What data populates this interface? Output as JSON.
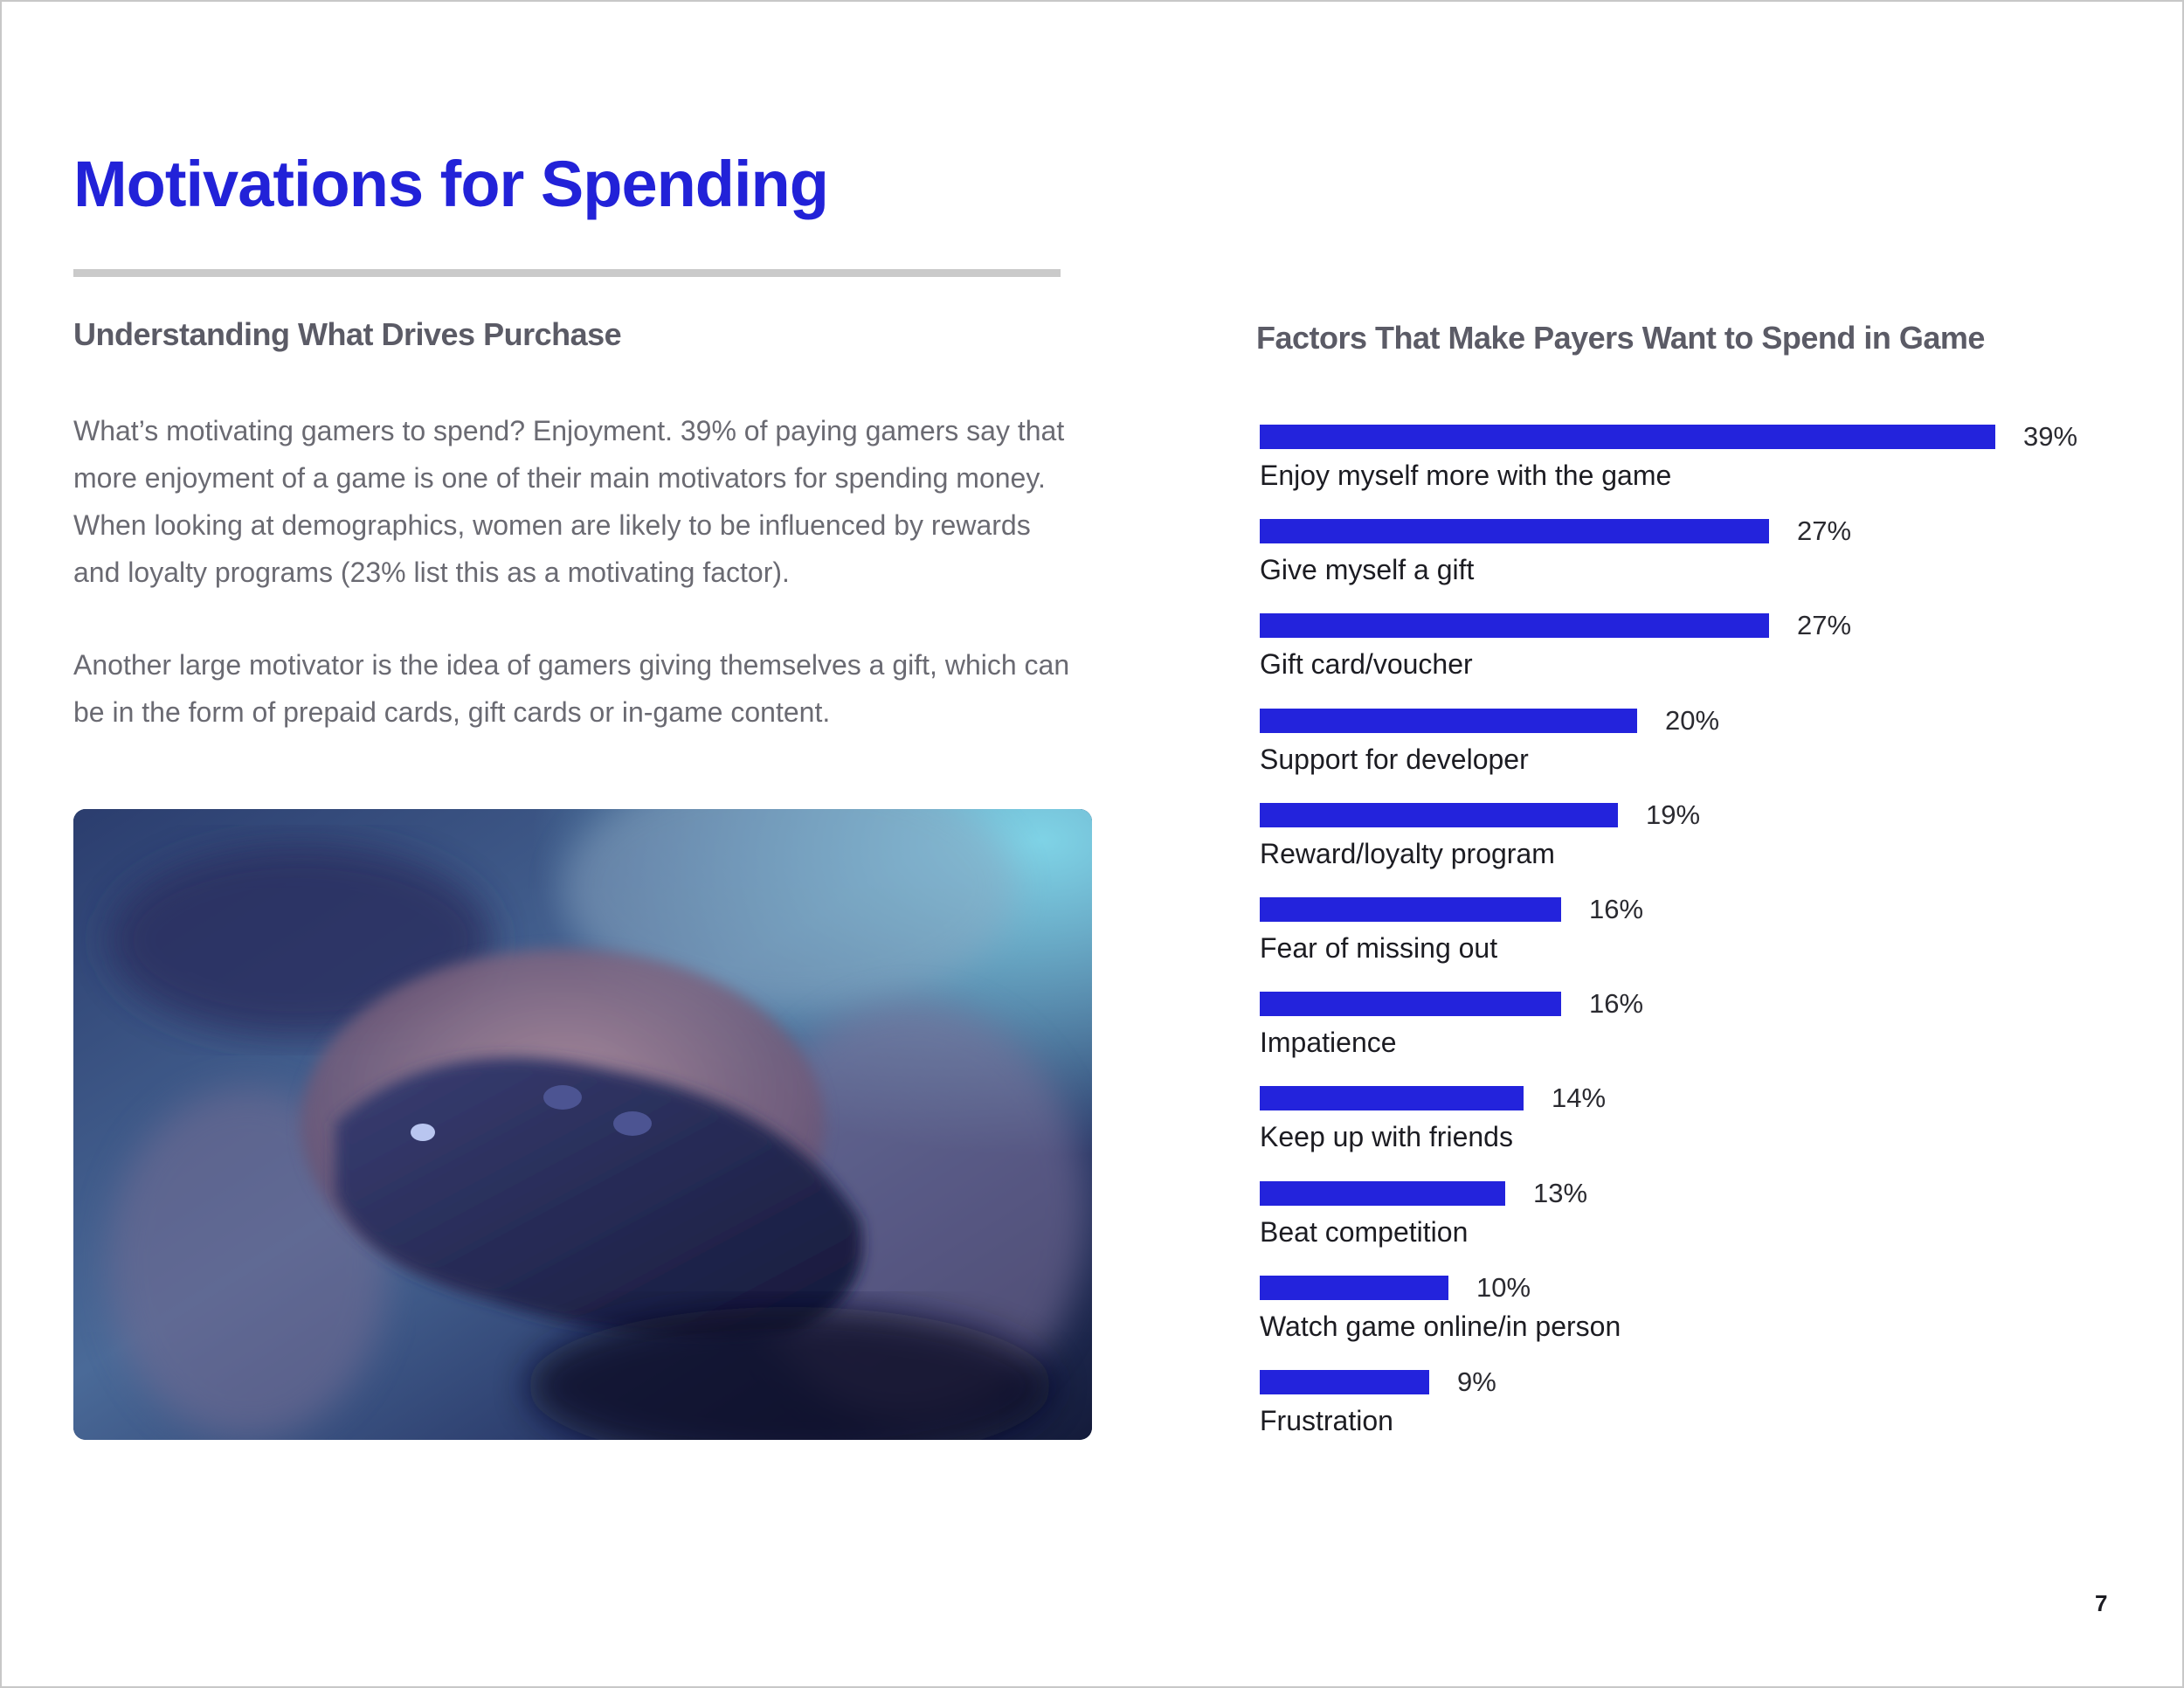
{
  "page": {
    "title": "Motivations for Spending",
    "page_number": "7"
  },
  "left": {
    "heading": "Understanding What Drives Purchase",
    "paragraph_1": "What’s motivating gamers to spend? Enjoyment. 39% of paying gamers say that more enjoyment of a game is one of their main motivators for spending money. When looking at demographics, women are likely to be influenced by rewards and loyalty programs (23% list this as a motivating factor).",
    "paragraph_2": "Another large motivator is the idea of gamers giving themselves a gift, which can be in the form of prepaid cards, gift cards or in-game content."
  },
  "colors": {
    "accent": "#2323dc",
    "title": "#2222d8",
    "heading": "#5b5b66",
    "body_text": "#6a6a72"
  },
  "chart_data": {
    "type": "bar",
    "orientation": "horizontal",
    "title": "Factors That Make Payers Want to Spend in Game",
    "categories": [
      "Enjoy myself more with the game",
      "Give myself a gift",
      "Gift card/voucher",
      "Support for developer",
      "Reward/loyalty program",
      "Fear of missing out",
      "Impatience",
      "Keep up with friends",
      "Beat competition",
      "Watch game online/in person",
      "Frustration"
    ],
    "values": [
      39,
      27,
      27,
      20,
      19,
      16,
      16,
      14,
      13,
      10,
      9
    ],
    "value_labels": [
      "39%",
      "27%",
      "27%",
      "20%",
      "19%",
      "16%",
      "16%",
      "14%",
      "13%",
      "10%",
      "9%"
    ],
    "unit": "%",
    "xlim": [
      0,
      39
    ],
    "grid": false,
    "legend": "none",
    "data_labels": "right-of-bar"
  }
}
